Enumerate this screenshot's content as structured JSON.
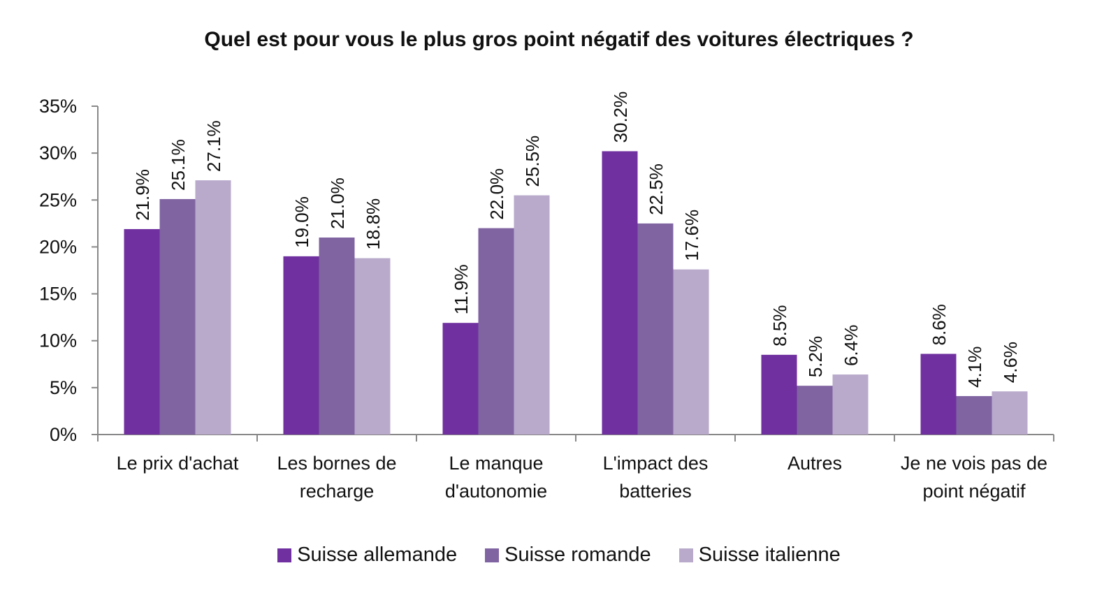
{
  "chart_data": {
    "type": "bar",
    "title": "Quel est pour vous le plus gros point négatif des voitures électriques ?",
    "xlabel": "",
    "ylabel": "",
    "ylim": [
      0,
      35
    ],
    "y_ticks": [
      "0%",
      "5%",
      "10%",
      "15%",
      "20%",
      "25%",
      "30%",
      "35%"
    ],
    "grid": false,
    "legend_position": "bottom",
    "categories": [
      [
        "Le prix d'achat"
      ],
      [
        "Les bornes de",
        "recharge"
      ],
      [
        "Le manque",
        "d'autonomie"
      ],
      [
        "L'impact des",
        "batteries"
      ],
      [
        "Autres"
      ],
      [
        "Je ne vois pas de",
        "point négatif"
      ]
    ],
    "series": [
      {
        "name": "Suisse allemande",
        "color": "#7030a0",
        "values": [
          21.9,
          19.0,
          11.9,
          30.2,
          8.5,
          8.6
        ],
        "labels": [
          "21.9%",
          "19.0%",
          "11.9%",
          "30.2%",
          "8.5%",
          "8.6%"
        ]
      },
      {
        "name": "Suisse romande",
        "color": "#8064a2",
        "values": [
          25.1,
          21.0,
          22.0,
          22.5,
          5.2,
          4.1
        ],
        "labels": [
          "25.1%",
          "21.0%",
          "22.0%",
          "22.5%",
          "5.2%",
          "4.1%"
        ]
      },
      {
        "name": "Suisse italienne",
        "color": "#b9aacb",
        "values": [
          27.1,
          18.8,
          25.5,
          17.6,
          6.4,
          4.6
        ],
        "labels": [
          "27.1%",
          "18.8%",
          "25.5%",
          "17.6%",
          "6.4%",
          "4.6%"
        ]
      }
    ]
  }
}
